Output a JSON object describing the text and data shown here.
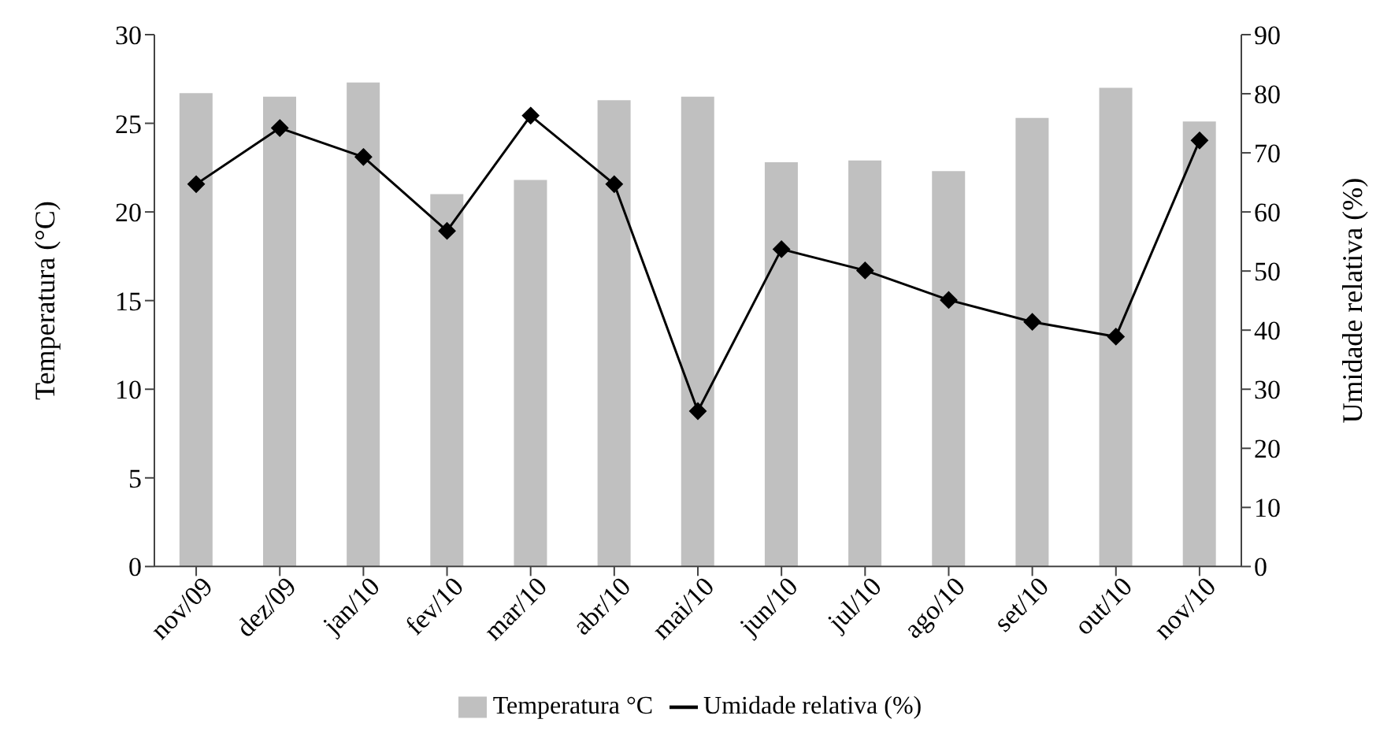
{
  "chart_data": {
    "type": "bar",
    "ylabel": "Temperatura (°C)",
    "y2label": "Umidade relativa (%)",
    "categories": [
      "nov/09",
      "dez/09",
      "jan/10",
      "fev/10",
      "mar/10",
      "abr/10",
      "mai/10",
      "jun/10",
      "jul/10",
      "ago/10",
      "set/10",
      "out/10",
      "nov/10"
    ],
    "series": [
      {
        "name": "Temperatura °C",
        "color": "#c0c0c0",
        "values": [
          26.7,
          26.5,
          27.3,
          21.0,
          21.8,
          26.3,
          26.5,
          22.8,
          22.9,
          22.3,
          25.3,
          27.0,
          25.1
        ]
      },
      {
        "name": "Umidade relativa (%)",
        "type": "line",
        "axis": "y2",
        "color": "#000000",
        "marker": "diamond",
        "values": [
          64.7,
          74.2,
          69.3,
          56.8,
          76.3,
          64.7,
          26.3,
          53.7,
          50.1,
          45.1,
          41.4,
          38.9,
          72.1
        ]
      }
    ],
    "ylim": [
      0,
      30
    ],
    "yticks": [
      0,
      5,
      10,
      15,
      20,
      25,
      30
    ],
    "y2lim": [
      0,
      90
    ],
    "y2ticks": [
      0,
      10,
      20,
      30,
      40,
      50,
      60,
      70,
      80,
      90
    ],
    "legend": "bottom"
  }
}
